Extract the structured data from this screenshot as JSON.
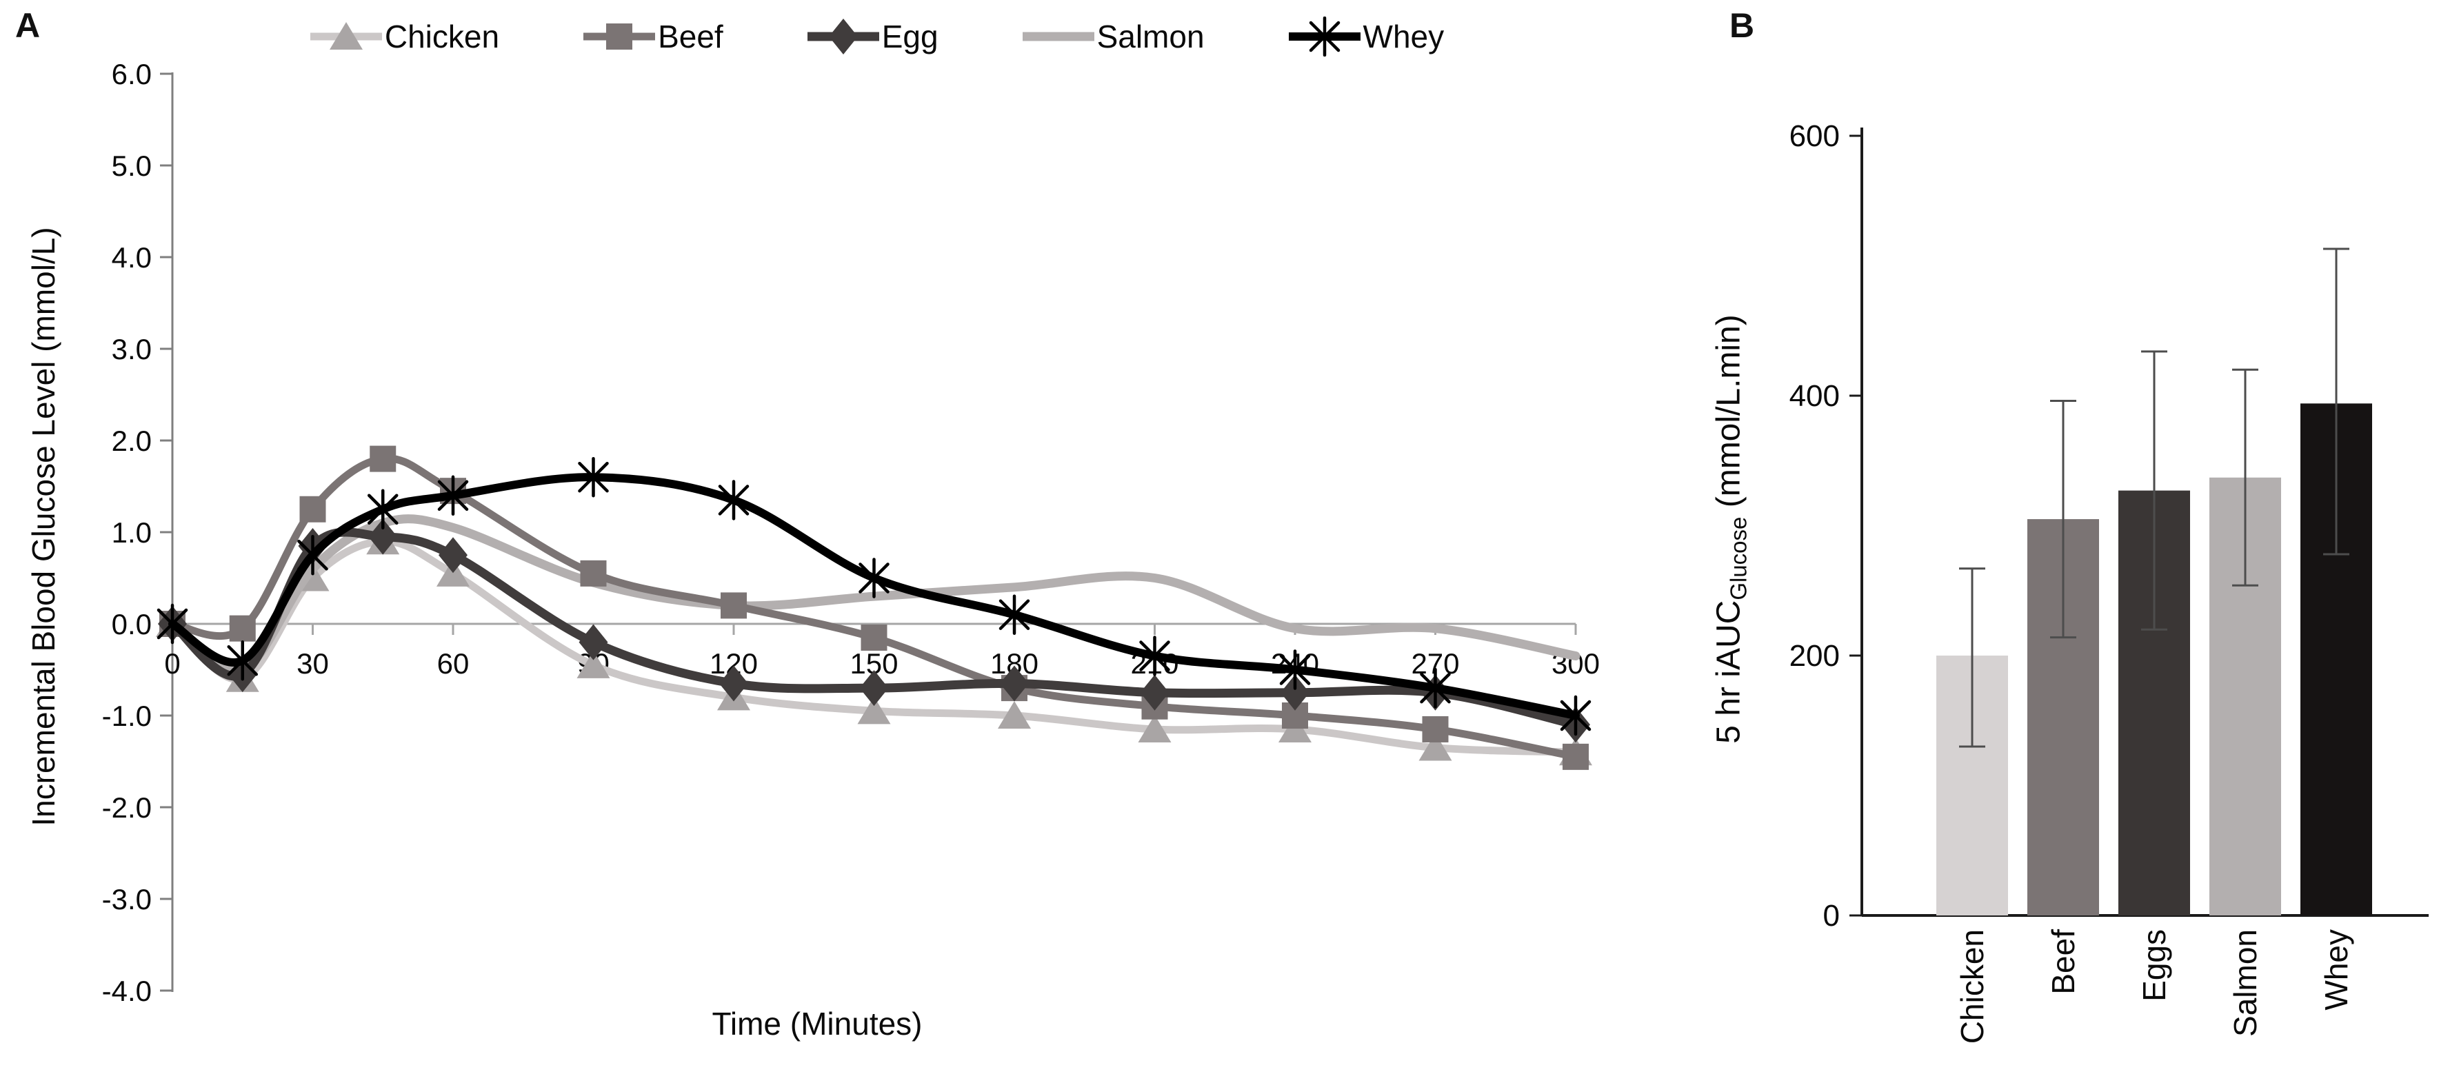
{
  "panels": {
    "a": {
      "label": "A"
    },
    "b": {
      "label": "B"
    }
  },
  "chart_data": [
    {
      "type": "line",
      "panel": "A",
      "title": "",
      "xlabel": "Time (Minutes)",
      "ylabel": "Incremental Blood Glucose Level (mmol/L)",
      "x": [
        0,
        15,
        30,
        45,
        60,
        90,
        120,
        150,
        180,
        210,
        240,
        270,
        300
      ],
      "x_tick_labels": [
        "0",
        "30",
        "60",
        "90",
        "120",
        "150",
        "180",
        "210",
        "240",
        "270",
        "300"
      ],
      "y_tick_labels": [
        "6.0",
        "5.0",
        "4.0",
        "3.0",
        "2.0",
        "1.0",
        "0.0",
        "-1.0",
        "-2.0",
        "-3.0",
        "-4.0"
      ],
      "y_tick_values": [
        6,
        5,
        4,
        3,
        2,
        1,
        0,
        -1,
        -2,
        -3,
        -4
      ],
      "xlim": [
        0,
        300
      ],
      "ylim": [
        -4.0,
        6.0
      ],
      "grid": "zero-line-only",
      "legend_position": "top",
      "series": [
        {
          "name": "Chicken",
          "marker": "triangle",
          "line_color": "#cbc7c7",
          "marker_color": "#a9a5a5",
          "values": [
            0,
            -0.6,
            0.5,
            0.9,
            0.55,
            -0.45,
            -0.8,
            -0.95,
            -1.0,
            -1.15,
            -1.15,
            -1.35,
            -1.4
          ]
        },
        {
          "name": "Beef",
          "marker": "square",
          "line_color": "#7b7474",
          "marker_color": "#7b7474",
          "values": [
            0,
            -0.05,
            1.25,
            1.8,
            1.45,
            0.55,
            0.2,
            -0.15,
            -0.7,
            -0.9,
            -1.0,
            -1.15,
            -1.45
          ]
        },
        {
          "name": "Egg",
          "marker": "diamond",
          "line_color": "#403c3c",
          "marker_color": "#403c3c",
          "values": [
            0,
            -0.55,
            0.85,
            0.95,
            0.75,
            -0.2,
            -0.65,
            -0.7,
            -0.65,
            -0.75,
            -0.75,
            -0.75,
            -1.1
          ]
        },
        {
          "name": "Salmon",
          "marker": "none",
          "line_color": "#b3afaf",
          "marker_color": "#b3afaf",
          "values": [
            0,
            -0.5,
            0.6,
            1.1,
            1.05,
            0.45,
            0.2,
            0.3,
            0.4,
            0.5,
            -0.05,
            -0.05,
            -0.35
          ]
        },
        {
          "name": "Whey",
          "marker": "asterisk",
          "line_color": "#000000",
          "marker_color": "#000000",
          "values": [
            0,
            -0.4,
            0.75,
            1.25,
            1.4,
            1.6,
            1.35,
            0.5,
            0.1,
            -0.35,
            -0.5,
            -0.7,
            -1.0
          ]
        }
      ]
    },
    {
      "type": "bar",
      "panel": "B",
      "title": "",
      "ylabel_pre": "5 hr iAUC",
      "ylabel_sub": "Glucose",
      "ylabel_post": " (mmol/L.min)",
      "categories": [
        "Chicken",
        "Beef",
        "Eggs",
        "Salmon",
        "Whey"
      ],
      "values": [
        200,
        305,
        327,
        337,
        394
      ],
      "error_minus": [
        70,
        91,
        107,
        83,
        116
      ],
      "error_plus": [
        67,
        91,
        107,
        83,
        119
      ],
      "bar_colors": [
        "#d6d2d2",
        "#7b7474",
        "#3a3635",
        "#b3afaf",
        "#161313"
      ],
      "y_ticks": [
        0,
        200,
        400,
        600
      ],
      "y_tick_labels": [
        "0",
        "200",
        "400",
        "600"
      ],
      "ylim": [
        0,
        600
      ],
      "grid": false,
      "error_bar_color": "#4d4d4d"
    }
  ]
}
